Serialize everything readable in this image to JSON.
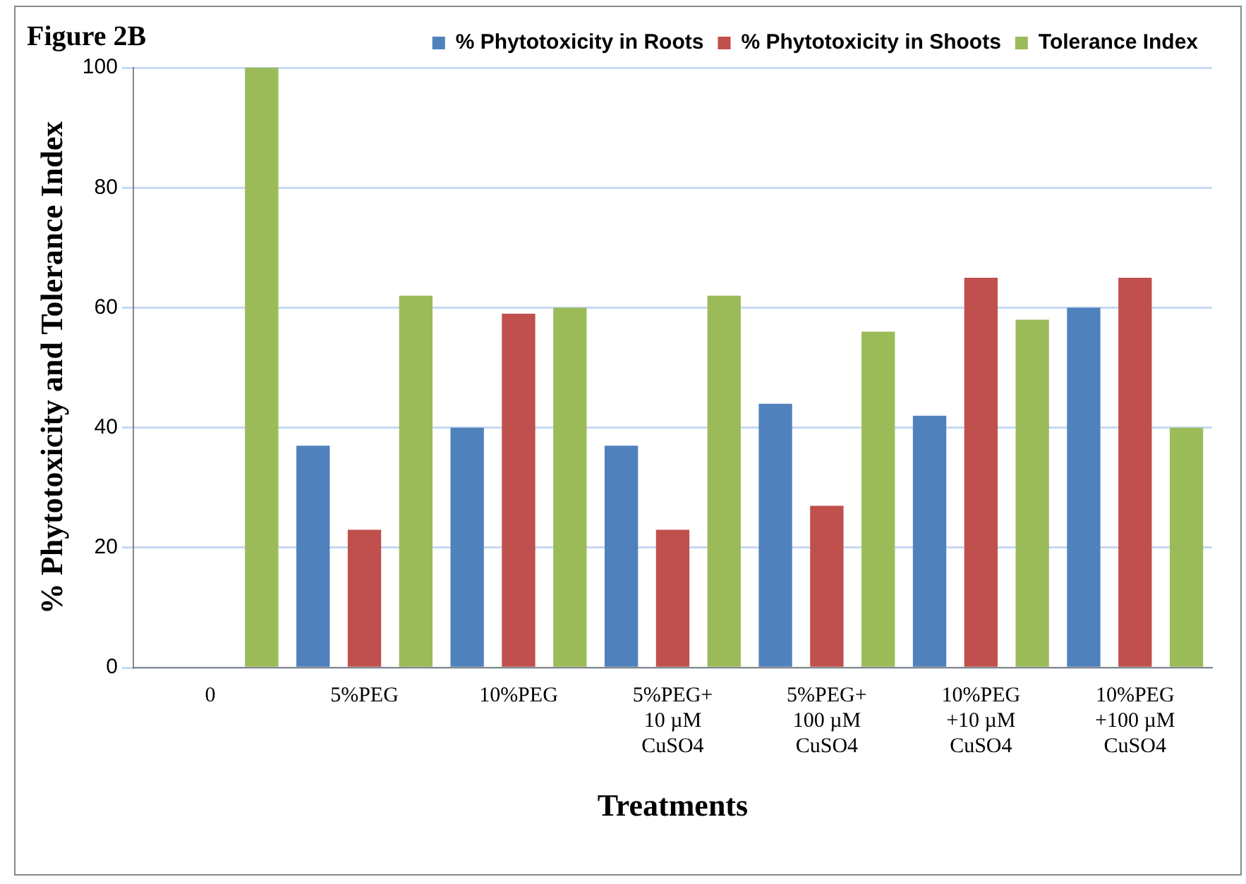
{
  "chart_data": {
    "type": "bar",
    "title": "Figure 2B",
    "xlabel": "Treatments",
    "ylabel": "% Phytotoxicity and Tolerance Index",
    "categories": [
      "0",
      "5%PEG",
      "10%PEG",
      "5%PEG+ 10 µM CuSO4",
      "5%PEG+ 100 µM CuSO4",
      "10%PEG +10 µM CuSO4",
      "10%PEG +100 µM CuSO4"
    ],
    "series": [
      {
        "name": "% Phytotoxicity in Roots",
        "color": "#4f81bd",
        "values": [
          0,
          37,
          40,
          37,
          44,
          42,
          60
        ]
      },
      {
        "name": "% Phytotoxicity in Shoots",
        "color": "#c0504d",
        "values": [
          0,
          23,
          59,
          23,
          27,
          65,
          65
        ]
      },
      {
        "name": "Tolerance Index",
        "color": "#9bbb59",
        "values": [
          100,
          62,
          60,
          62,
          56,
          58,
          40
        ]
      }
    ],
    "ylim": [
      0,
      100
    ],
    "yticks": [
      0,
      20,
      40,
      60,
      80,
      100
    ],
    "grid": "y",
    "legend": "top right"
  }
}
